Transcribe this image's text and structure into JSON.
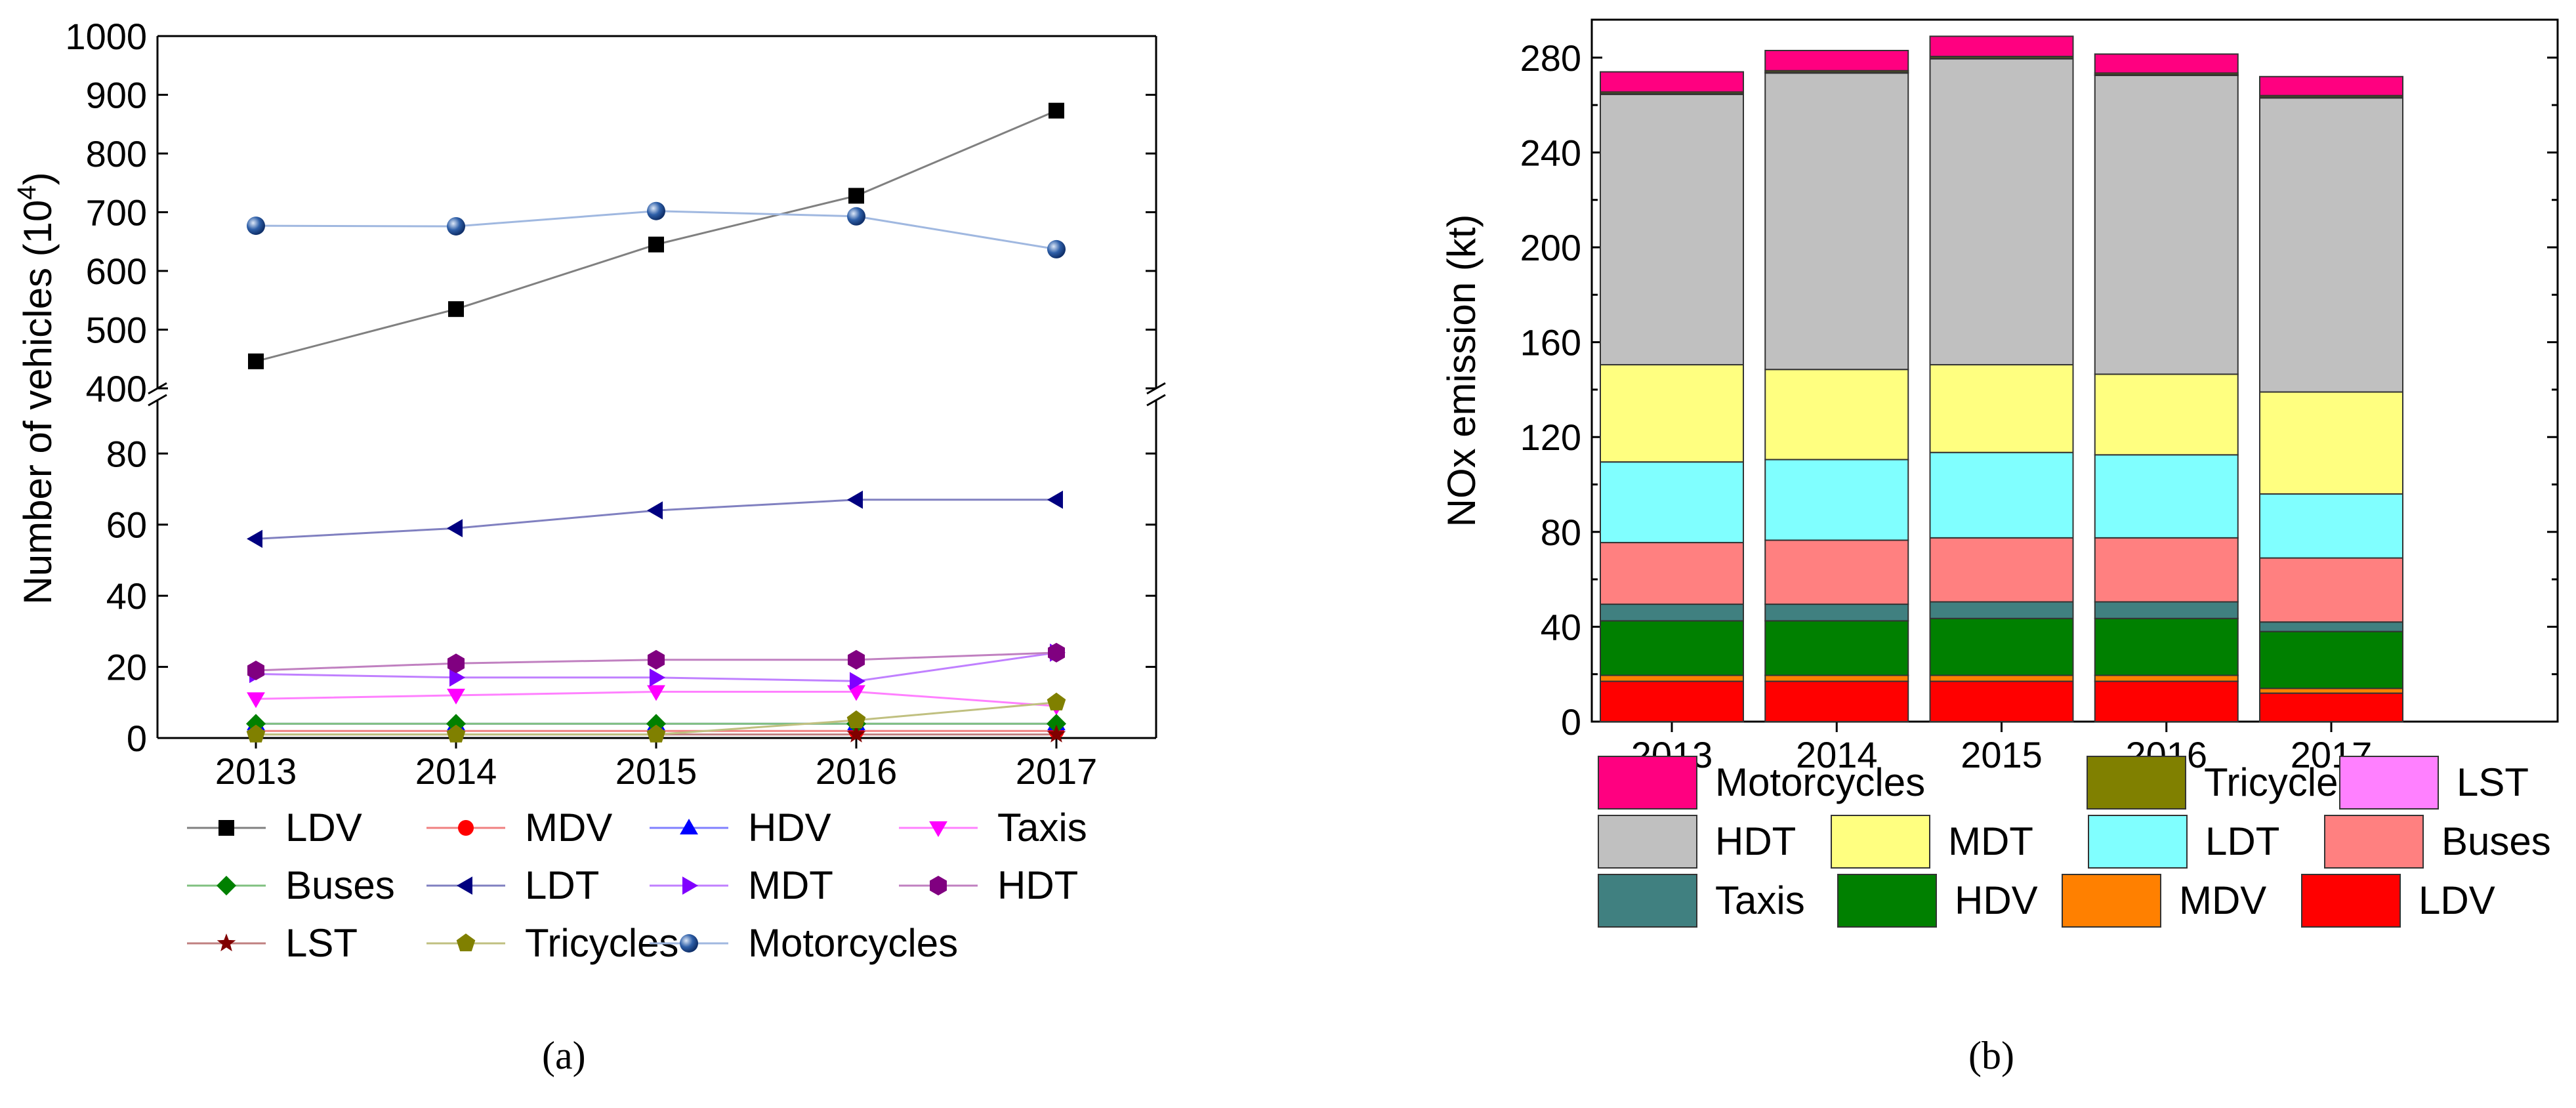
{
  "panel_labels": [
    "(a)",
    "(b)"
  ],
  "chart_data": [
    {
      "type": "line",
      "ylabel": "Number of vehicles (10",
      "ylabel_sup": "4",
      "ylabel_tail": ")",
      "x": [
        2013,
        2014,
        2015,
        2016,
        2017
      ],
      "y_axis_break": true,
      "upper_ylim": [
        400,
        1000
      ],
      "upper_yticks": [
        400,
        500,
        600,
        700,
        800,
        900,
        1000
      ],
      "lower_ylim": [
        0,
        95
      ],
      "lower_yticks": [
        0,
        20,
        40,
        60,
        80
      ],
      "grid": false,
      "legend_position": "bottom",
      "series": [
        {
          "name": "LDV",
          "marker": "square",
          "color": "#000000",
          "line_color": "#808080",
          "values": [
            446,
            535,
            645,
            728,
            873
          ]
        },
        {
          "name": "MDV",
          "marker": "circle",
          "color": "#FF0000",
          "line_color": "#F08080",
          "values": [
            2,
            2,
            2,
            2,
            2
          ]
        },
        {
          "name": "HDV",
          "marker": "triangle-up",
          "color": "#0000FF",
          "line_color": "#8080FF",
          "values": [
            4,
            4,
            4,
            4,
            4
          ]
        },
        {
          "name": "Taxis",
          "marker": "triangle-down",
          "color": "#FF00FF",
          "line_color": "#FF80FF",
          "values": [
            11,
            12,
            13,
            13,
            9
          ]
        },
        {
          "name": "Buses",
          "marker": "diamond",
          "color": "#008000",
          "line_color": "#80C080",
          "values": [
            4,
            4,
            4,
            4,
            4
          ]
        },
        {
          "name": "LDT",
          "marker": "triangle-left",
          "color": "#000080",
          "line_color": "#8080C0",
          "values": [
            56,
            59,
            64,
            67,
            67
          ]
        },
        {
          "name": "MDT",
          "marker": "triangle-right",
          "color": "#8000FF",
          "line_color": "#C080FF",
          "values": [
            18,
            17,
            17,
            16,
            24
          ]
        },
        {
          "name": "HDT",
          "marker": "hexagon",
          "color": "#800080",
          "line_color": "#C080C0",
          "values": [
            19,
            21,
            22,
            22,
            24
          ]
        },
        {
          "name": "LST",
          "marker": "star",
          "color": "#800000",
          "line_color": "#C08080",
          "values": [
            1,
            1,
            1,
            1,
            1
          ]
        },
        {
          "name": "Tricycles",
          "marker": "pentagon",
          "color": "#808000",
          "line_color": "#C0C080",
          "values": [
            1,
            1,
            1,
            5,
            10
          ]
        },
        {
          "name": "Motorcycles",
          "marker": "sphere",
          "color": "#2E5FA8",
          "line_color": "#A0B8E0",
          "values": [
            677,
            676,
            702,
            693,
            637
          ]
        }
      ]
    },
    {
      "type": "bar",
      "stacked": true,
      "ylabel": "NOx emission (kt)",
      "categories": [
        "2013",
        "2014",
        "2015",
        "2016",
        "2017"
      ],
      "ylim": [
        0,
        296
      ],
      "yticks": [
        0,
        40,
        80,
        120,
        160,
        200,
        240,
        280
      ],
      "grid": false,
      "legend_position": "bottom",
      "series": [
        {
          "name": "LDV",
          "color": "#FF0000",
          "values": [
            17,
            17,
            17,
            17,
            12
          ]
        },
        {
          "name": "MDV",
          "color": "#FF8000",
          "values": [
            2.5,
            2.5,
            2.5,
            2.5,
            2
          ]
        },
        {
          "name": "HDV",
          "color": "#008000",
          "values": [
            23,
            23,
            24,
            24,
            24
          ]
        },
        {
          "name": "Taxis",
          "color": "#408080",
          "values": [
            7,
            7,
            7,
            7,
            4
          ]
        },
        {
          "name": "Buses",
          "color": "#FF8080",
          "values": [
            26,
            27,
            27,
            27,
            27
          ]
        },
        {
          "name": "LDT",
          "color": "#80FFFF",
          "values": [
            34,
            34,
            36,
            35,
            27
          ]
        },
        {
          "name": "MDT",
          "color": "#FFFF80",
          "values": [
            41,
            38,
            37,
            34,
            43
          ]
        },
        {
          "name": "HDT",
          "color": "#C0C0C0",
          "values": [
            114,
            125,
            129,
            126,
            124
          ]
        },
        {
          "name": "LST",
          "color": "#FF80FF",
          "values": [
            0.3,
            0.3,
            0.3,
            0.3,
            0.3
          ]
        },
        {
          "name": "Tricycles",
          "color": "#808000",
          "values": [
            0.7,
            0.7,
            0.7,
            0.7,
            0.7
          ]
        },
        {
          "name": "Motorcycles",
          "color": "#FF0080",
          "values": [
            8.5,
            8.5,
            8.5,
            8,
            8
          ]
        }
      ],
      "legend_rows": [
        [
          "Motorcycles",
          "Tricycles",
          "LST"
        ],
        [
          "HDT",
          "MDT",
          "LDT",
          "Buses"
        ],
        [
          "Taxis",
          "HDV",
          "MDV",
          "LDV"
        ]
      ]
    }
  ]
}
